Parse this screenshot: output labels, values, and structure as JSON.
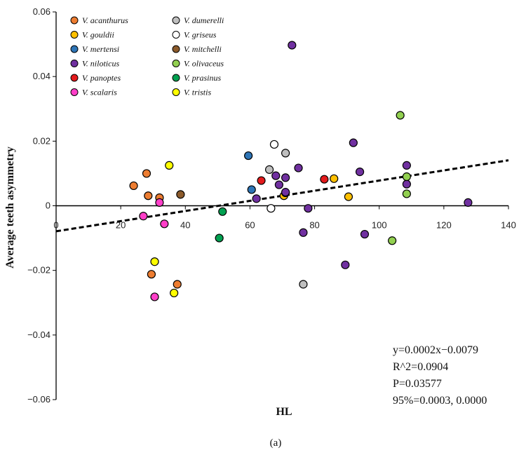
{
  "chart_data": {
    "type": "scatter",
    "title": "",
    "xlabel": "HL",
    "ylabel": "Average teeth asymmetry",
    "xlim": [
      0,
      140
    ],
    "ylim": [
      -0.06,
      0.06
    ],
    "x_ticks": [
      {
        "value": 0,
        "label": "0"
      },
      {
        "value": 20,
        "label": "20"
      },
      {
        "value": 40,
        "label": "40"
      },
      {
        "value": 60,
        "label": "60"
      },
      {
        "value": 80,
        "label": "80"
      },
      {
        "value": 100,
        "label": "100"
      },
      {
        "value": 120,
        "label": "120"
      },
      {
        "value": 140,
        "label": "140"
      }
    ],
    "y_ticks": [
      {
        "value": 0.06,
        "label": "0.06"
      },
      {
        "value": 0.04,
        "label": "0.04"
      },
      {
        "value": 0.02,
        "label": "0.02"
      },
      {
        "value": 0,
        "label": "0"
      },
      {
        "value": -0.02,
        "label": "−0.02"
      },
      {
        "value": -0.04,
        "label": "−0.04"
      },
      {
        "value": -0.06,
        "label": "−0.06"
      }
    ],
    "trendline": {
      "slope": 0.000157,
      "intercept": -0.0079,
      "style": "dashed"
    },
    "stats": [
      "y=0.0002x−0.0079",
      "R^2=0.0904",
      "P=0.03577",
      "95%=0.0003, 0.0000"
    ],
    "caption": "(a)",
    "legend_position": "top-left",
    "series": [
      {
        "name": "V. acanthurus",
        "color": "#ED7D31",
        "points": [
          [
            24,
            0.0062
          ],
          [
            28,
            0.01
          ],
          [
            28.5,
            0.0031
          ],
          [
            32,
            0.0025
          ],
          [
            29.5,
            -0.0212
          ],
          [
            37.5,
            -0.0243
          ]
        ]
      },
      {
        "name": "V. dumerelli",
        "color": "#BFBFBF",
        "points": [
          [
            66,
            0.0112
          ],
          [
            71,
            0.0163
          ],
          [
            76.5,
            -0.0243
          ]
        ]
      },
      {
        "name": "V. gouldii",
        "color": "#FFC000",
        "points": [
          [
            70.5,
            0.0031
          ],
          [
            86,
            0.0084
          ],
          [
            90.5,
            0.0028
          ]
        ]
      },
      {
        "name": "V. griseus",
        "color": "#FFFFFF",
        "points": [
          [
            67.5,
            0.019
          ],
          [
            66.5,
            -0.0008
          ]
        ]
      },
      {
        "name": "V. mertensi",
        "color": "#2E75B6",
        "points": [
          [
            59.5,
            0.0155
          ],
          [
            60.5,
            0.005
          ]
        ]
      },
      {
        "name": "V. mitchelli",
        "color": "#8B5A2B",
        "points": [
          [
            38.5,
            0.0035
          ],
          [
            71,
            0.004
          ]
        ]
      },
      {
        "name": "V. niloticus",
        "color": "#7030A0",
        "points": [
          [
            73,
            0.0497
          ],
          [
            92,
            0.0195
          ],
          [
            108.5,
            0.0125
          ],
          [
            108.5,
            0.0067
          ],
          [
            94,
            0.0105
          ],
          [
            75,
            0.0117
          ],
          [
            68,
            0.0093
          ],
          [
            69,
            0.0065
          ],
          [
            71,
            0.0087
          ],
          [
            71,
            0.0042
          ],
          [
            62,
            0.0022
          ],
          [
            78,
            -0.0008
          ],
          [
            76.5,
            -0.0083
          ],
          [
            95.5,
            -0.0088
          ],
          [
            89.5,
            -0.0183
          ],
          [
            127.5,
            0.001
          ]
        ]
      },
      {
        "name": "V. olivaceus",
        "color": "#92D050",
        "points": [
          [
            106.5,
            0.028
          ],
          [
            108.5,
            0.009
          ],
          [
            108.5,
            0.0037
          ],
          [
            104,
            -0.0108
          ]
        ]
      },
      {
        "name": "V. panoptes",
        "color": "#E31A1C",
        "points": [
          [
            63.5,
            0.0078
          ],
          [
            83,
            0.0082
          ]
        ]
      },
      {
        "name": "V. prasinus",
        "color": "#00A050",
        "points": [
          [
            51.5,
            -0.0018
          ],
          [
            50.5,
            -0.01
          ]
        ]
      },
      {
        "name": "V. scalaris",
        "color": "#FF3EC8",
        "points": [
          [
            27,
            -0.0032
          ],
          [
            32,
            0.001
          ],
          [
            33.5,
            -0.0056
          ],
          [
            30.5,
            -0.0282
          ]
        ]
      },
      {
        "name": "V. tristis",
        "color": "#FFFF00",
        "points": [
          [
            35,
            0.0125
          ],
          [
            30.5,
            -0.0173
          ],
          [
            36.5,
            -0.027
          ]
        ]
      }
    ]
  }
}
